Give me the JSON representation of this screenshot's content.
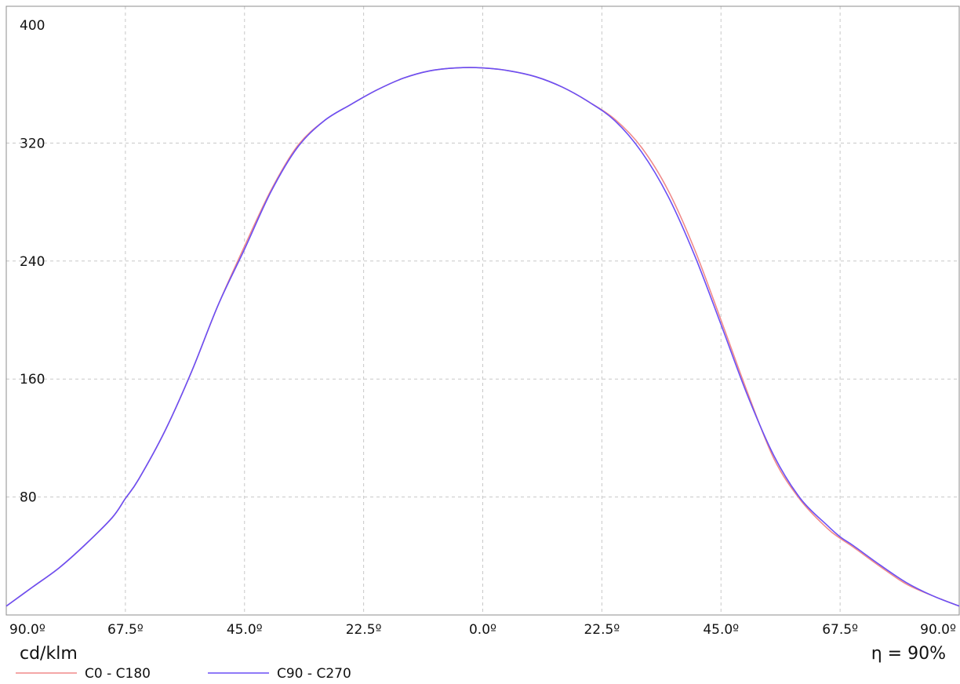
{
  "chart_data": {
    "type": "line",
    "ylim": [
      0,
      400
    ],
    "xlim": [
      -90,
      90
    ],
    "y_ticks": [
      80,
      160,
      240,
      320,
      400
    ],
    "y_tick_labels": [
      "80",
      "160",
      "240",
      "320",
      "400"
    ],
    "x_ticks": [
      -90,
      -67.5,
      -45,
      -22.5,
      0,
      22.5,
      45,
      67.5,
      90
    ],
    "x_tick_labels": [
      "90.0º",
      "67.5º",
      "45.0º",
      "22.5º",
      "0.0º",
      "22.5º",
      "45.0º",
      "67.5º",
      "90.0º"
    ],
    "grid": true,
    "unit_label": "cd/klm",
    "efficiency_label": "η = 90%",
    "series": [
      {
        "name": "C0 - C180",
        "color": "#f08a8a",
        "x": [
          -90,
          -85,
          -80,
          -75,
          -70,
          -67.5,
          -65,
          -60,
          -55,
          -50,
          -45,
          -40,
          -35,
          -30,
          -25,
          -20,
          -15,
          -10,
          -5,
          0,
          5,
          10,
          15,
          20,
          25,
          30,
          35,
          40,
          45,
          50,
          55,
          60,
          65,
          67.5,
          70,
          75,
          80,
          85,
          90
        ],
        "y": [
          6,
          19,
          32,
          48,
          66,
          79,
          92,
          125,
          165,
          210,
          250,
          288,
          318,
          335,
          346,
          356,
          364,
          369,
          371,
          371,
          369,
          365,
          358,
          348,
          336,
          317,
          288,
          248,
          200,
          151,
          106,
          78,
          59,
          52,
          46,
          33,
          21,
          13,
          6
        ]
      },
      {
        "name": "C90 - C270",
        "color": "#6a4ff5",
        "x": [
          -90,
          -85,
          -80,
          -75,
          -70,
          -67.5,
          -65,
          -60,
          -55,
          -50,
          -45,
          -40,
          -35,
          -30,
          -25,
          -20,
          -15,
          -10,
          -5,
          0,
          5,
          10,
          15,
          20,
          25,
          30,
          35,
          40,
          45,
          50,
          55,
          60,
          65,
          67.5,
          70,
          75,
          80,
          85,
          90
        ],
        "y": [
          6,
          19,
          32,
          48,
          66,
          79,
          92,
          125,
          165,
          210,
          248,
          287,
          317,
          335,
          346,
          356,
          364,
          369,
          371,
          371,
          369,
          365,
          358,
          348,
          335,
          314,
          284,
          244,
          197,
          149,
          108,
          79,
          61,
          53,
          47,
          34,
          22,
          13,
          6
        ]
      }
    ]
  }
}
